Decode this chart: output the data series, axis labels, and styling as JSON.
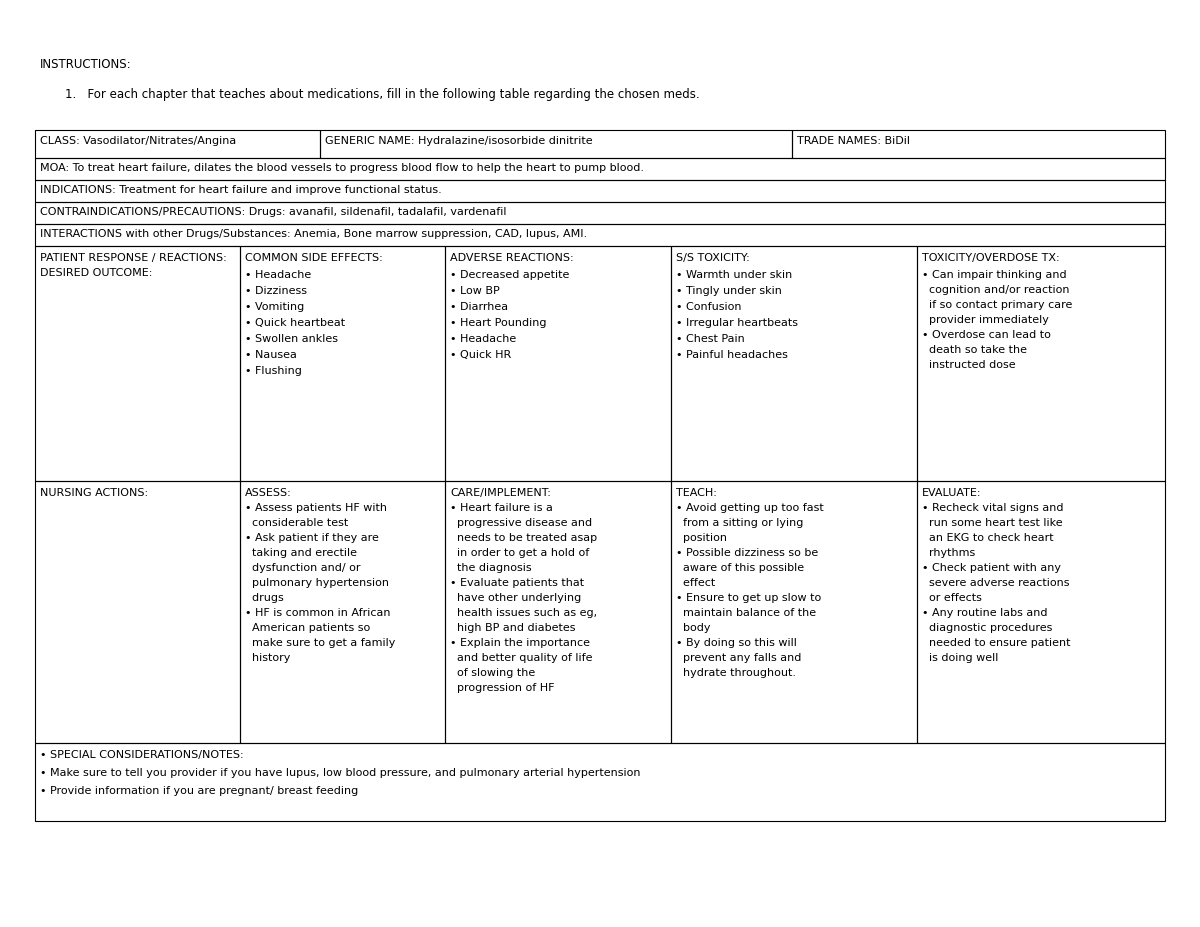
{
  "instructions_header": "INSTRUCTIONS:",
  "instructions_item": "1.   For each chapter that teaches about medications, fill in the following table regarding the chosen meds.",
  "class": "CLASS: Vasodilator/Nitrates/Angina",
  "generic_name": "GENERIC NAME: Hydralazine/isosorbide dinitrite",
  "trade_names": "TRADE NAMES: BiDil",
  "moa": "MOA: To treat heart failure, dilates the blood vessels to progress blood flow to help the heart to pump blood.",
  "indications": "INDICATIONS: Treatment for heart failure and improve functional status.",
  "contraindications": "CONTRAINDICATIONS/PRECAUTIONS: Drugs: avanafil, sildenafil, tadalafil, vardenafil",
  "interactions": "INTERACTIONS with other Drugs/Substances: Anemia, Bone marrow suppression, CAD, lupus, AMI.",
  "common_side_effects_label": "COMMON SIDE EFFECTS:",
  "common_side_effects": [
    "Headache",
    "Dizziness",
    "Vomiting",
    "Quick heartbeat",
    "Swollen ankles",
    "Nausea",
    "Flushing"
  ],
  "adverse_reactions_label": "ADVERSE REACTIONS:",
  "adverse_reactions": [
    "Decreased appetite",
    "Low BP",
    "Diarrhea",
    "Heart Pounding",
    "Headache",
    "Quick HR"
  ],
  "ss_toxicity_label": "S/S TOXICITY:",
  "ss_toxicity": [
    "Warmth under skin",
    "Tingly under skin",
    "Confusion",
    "Irregular heartbeats",
    "Chest Pain",
    "Painful headaches"
  ],
  "toxicity_overdose_label": "TOXICITY/OVERDOSE TX:",
  "toxicity_bullet1_lines": [
    "• Can impair thinking and",
    "  cognition and/or reaction",
    "  if so contact primary care",
    "  provider immediately"
  ],
  "toxicity_bullet2_lines": [
    "• Overdose can lead to",
    "  death so take the",
    "  instructed dose"
  ],
  "nursing_actions_label": "NURSING ACTIONS:",
  "assess_label": "ASSESS:",
  "assess_lines": [
    [
      "• Assess patients HF with",
      "  considerable test"
    ],
    [
      "• Ask patient if they are",
      "  taking and erectile",
      "  dysfunction and/ or",
      "  pulmonary hypertension",
      "  drugs"
    ],
    [
      "• HF is common in African",
      "  American patients so",
      "  make sure to get a family",
      "  history"
    ]
  ],
  "care_implement_label": "CARE/IMPLEMENT:",
  "care_lines": [
    [
      "• Heart failure is a",
      "  progressive disease and",
      "  needs to be treated asap",
      "  in order to get a hold of",
      "  the diagnosis"
    ],
    [
      "• Evaluate patients that",
      "  have other underlying",
      "  health issues such as eg,",
      "  high BP and diabetes"
    ],
    [
      "• Explain the importance",
      "  and better quality of life",
      "  of slowing the",
      "  progression of HF"
    ]
  ],
  "teach_label": "TEACH:",
  "teach_lines": [
    [
      "• Avoid getting up too fast",
      "  from a sitting or lying",
      "  position"
    ],
    [
      "• Possible dizziness so be",
      "  aware of this possible",
      "  effect"
    ],
    [
      "• Ensure to get up slow to",
      "  maintain balance of the",
      "  body"
    ],
    [
      "• By doing so this will",
      "  prevent any falls and",
      "  hydrate throughout."
    ]
  ],
  "evaluate_label": "EVALUATE:",
  "evaluate_lines": [
    [
      "• Recheck vital signs and",
      "  run some heart test like",
      "  an EKG to check heart",
      "  rhythms"
    ],
    [
      "• Check patient with any",
      "  severe adverse reactions",
      "  or effects"
    ],
    [
      "• Any routine labs and",
      "  diagnostic procedures",
      "  needed to ensure patient",
      "  is doing well"
    ]
  ],
  "special_notes_lines": [
    "• SPECIAL CONSIDERATIONS/NOTES:",
    "• Make sure to tell you provider if you have lupus, low blood pressure, and pulmonary arterial hypertension",
    "• Provide information if you are pregnant/ breast feeding"
  ],
  "bg_color": "#ffffff",
  "border_color": "#000000",
  "font_size": 8.0
}
